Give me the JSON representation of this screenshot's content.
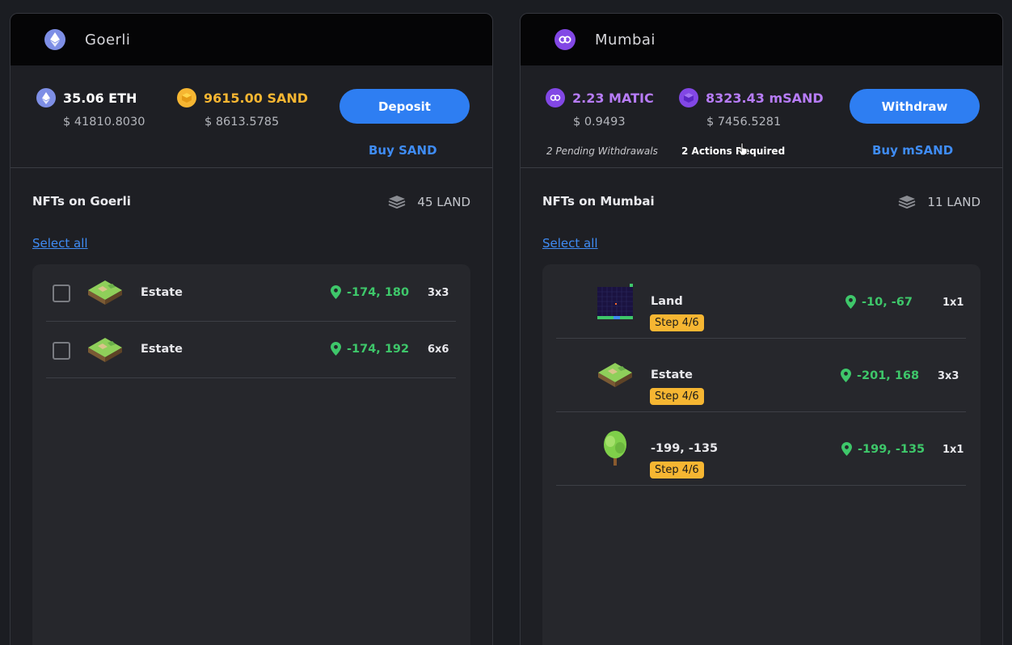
{
  "goerli": {
    "network_name": "Goerli",
    "network_icon": "ethereum-icon",
    "eth_amount": "35.06 ETH",
    "eth_usd": "$ 41810.8030",
    "sand_amount": "9615.00 SAND",
    "sand_usd": "$ 8613.5785",
    "sand_color": "#f6b632",
    "deposit_label": "Deposit",
    "buy_label": "Buy SAND",
    "nfts_title": "NFTs on Goerli",
    "land_count": "45 LAND",
    "select_all": "Select all",
    "items": [
      {
        "name": "Estate",
        "coords": "-174, 180",
        "size": "3x3"
      },
      {
        "name": "Estate",
        "coords": "-174, 192",
        "size": "6x6"
      }
    ]
  },
  "mumbai": {
    "network_name": "Mumbai",
    "network_icon": "polygon-icon",
    "matic_amount": "2.23 MATIC",
    "matic_usd": "$ 0.9493",
    "msand_amount": "8323.43 mSAND",
    "msand_usd": "$ 7456.5281",
    "token_color": "#b77cf7",
    "withdraw_label": "Withdraw",
    "pending_label": "2 Pending Withdrawals",
    "actions_label": "2 Actions Required",
    "buy_label": "Buy mSAND",
    "nfts_title": "NFTs on Mumbai",
    "land_count": "11 LAND",
    "select_all": "Select all",
    "items": [
      {
        "name": "Land",
        "coords": "-10, -67",
        "size": "1x1",
        "step": "Step 4/6"
      },
      {
        "name": "Estate",
        "coords": "-201, 168",
        "size": "3x3",
        "step": "Step 4/6"
      },
      {
        "name": "-199, -135",
        "coords": "-199, -135",
        "size": "1x1",
        "step": "Step 4/6"
      }
    ]
  },
  "colors": {
    "accent_blue": "#2e7ef2",
    "link_blue": "#3f8cf5",
    "coords_green": "#3ec76a",
    "badge_yellow": "#f6b632"
  }
}
